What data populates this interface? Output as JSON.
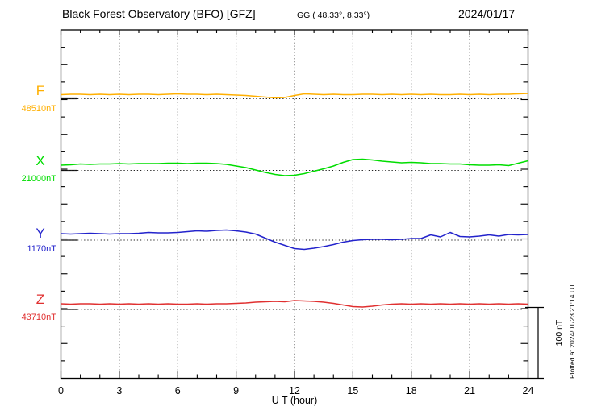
{
  "header": {
    "title": "Black Forest Observatory (BFO)  [GFZ]",
    "subtitle": "GG ( 48.33°,   8.33°)",
    "date": "2024/01/17"
  },
  "annotations": {
    "scale_bar_label": "100 nT",
    "plotted_at": "Plotted at 2024/01/23 21:14 UT"
  },
  "chart_data": {
    "type": "line",
    "title": "Black Forest Observatory (BFO) [GFZ] magnetogram, 2024/01/17",
    "xlabel": "U T (hour)",
    "x_ticks": [
      0,
      3,
      6,
      9,
      12,
      15,
      18,
      21,
      24
    ],
    "x_range_hours": [
      0,
      24
    ],
    "grid": "vertical dotted gridlines every 3 hours; dotted horizontal baseline under each trace; inward ticks on all four axes",
    "scale_bar": {
      "label": "100 nT",
      "span_nT": 100
    },
    "x_hours": [
      0,
      0.5,
      1,
      1.5,
      2,
      2.5,
      3,
      3.5,
      4,
      4.5,
      5,
      5.5,
      6,
      6.5,
      7,
      7.5,
      8,
      8.5,
      9,
      9.5,
      10,
      10.5,
      11,
      11.5,
      12,
      12.5,
      13,
      13.5,
      14,
      14.5,
      15,
      15.5,
      16,
      16.5,
      17,
      17.5,
      18,
      18.5,
      19,
      19.5,
      20,
      20.5,
      21,
      21.5,
      22,
      22.5,
      23,
      23.5,
      24
    ],
    "series": [
      {
        "name": "F",
        "base_label": "48510nT",
        "baseline_nT": 48510,
        "color": "#ffaf00",
        "deviation_nT": [
          2.9,
          3.5,
          3.5,
          2.9,
          3.5,
          2.9,
          3.5,
          2.9,
          3.5,
          3.5,
          2.9,
          3.5,
          4.1,
          3.5,
          3.5,
          2.9,
          3.5,
          2.9,
          2.3,
          1.7,
          0.6,
          -0.6,
          -1.7,
          -1.2,
          1.7,
          4.1,
          3.5,
          2.9,
          3.5,
          2.9,
          2.9,
          3.5,
          3.5,
          2.9,
          3.5,
          2.9,
          3.5,
          2.9,
          3.5,
          2.9,
          2.9,
          3.5,
          2.9,
          3.5,
          2.9,
          3.5,
          3.5,
          4.1,
          4.7
        ]
      },
      {
        "name": "X",
        "base_label": "21000nT",
        "baseline_nT": 21000,
        "color": "#00dd00",
        "deviation_nT": [
          4.7,
          5.2,
          6.4,
          5.8,
          6.4,
          6.4,
          7.0,
          6.4,
          7.0,
          7.0,
          7.0,
          7.6,
          7.6,
          7.0,
          7.6,
          7.6,
          7.0,
          5.8,
          3.5,
          1.2,
          -2.3,
          -5.8,
          -8.7,
          -10.5,
          -9.9,
          -7.6,
          -4.1,
          -0.6,
          3.5,
          8.7,
          12.8,
          13.4,
          12.2,
          10.5,
          9.3,
          8.1,
          8.7,
          8.1,
          7.0,
          7.0,
          6.4,
          6.4,
          5.2,
          4.7,
          4.7,
          5.2,
          4.1,
          7.6,
          11.0
        ]
      },
      {
        "name": "Y",
        "base_label": "1170nT",
        "baseline_nT": 1170,
        "color": "#2323cc",
        "deviation_nT": [
          6.4,
          5.8,
          6.4,
          7.0,
          6.4,
          5.8,
          6.4,
          6.4,
          7.0,
          8.1,
          7.6,
          7.6,
          8.1,
          9.3,
          10.5,
          9.9,
          11.0,
          11.6,
          10.5,
          8.7,
          5.8,
          0.0,
          -5.8,
          -10.5,
          -15.1,
          -16.3,
          -14.5,
          -12.2,
          -9.3,
          -5.8,
          -3.5,
          -2.3,
          -1.7,
          -1.7,
          -2.3,
          -1.7,
          -0.6,
          -0.6,
          4.7,
          1.7,
          8.1,
          2.3,
          1.7,
          2.9,
          4.7,
          2.9,
          5.2,
          4.7,
          5.2
        ]
      },
      {
        "name": "Z",
        "base_label": "43710nT",
        "baseline_nT": 43710,
        "color": "#e03030",
        "deviation_nT": [
          5.2,
          4.7,
          5.2,
          5.2,
          4.7,
          5.2,
          4.7,
          5.2,
          4.7,
          5.2,
          4.7,
          5.2,
          4.7,
          4.7,
          5.2,
          4.7,
          5.2,
          5.2,
          5.8,
          6.4,
          7.6,
          8.1,
          8.7,
          8.1,
          9.9,
          9.3,
          8.7,
          7.6,
          5.8,
          3.5,
          1.2,
          0.6,
          1.7,
          3.5,
          4.7,
          5.2,
          4.7,
          5.2,
          4.7,
          5.2,
          4.7,
          5.2,
          4.7,
          5.2,
          4.7,
          5.2,
          4.7,
          5.2,
          4.7
        ]
      }
    ]
  }
}
